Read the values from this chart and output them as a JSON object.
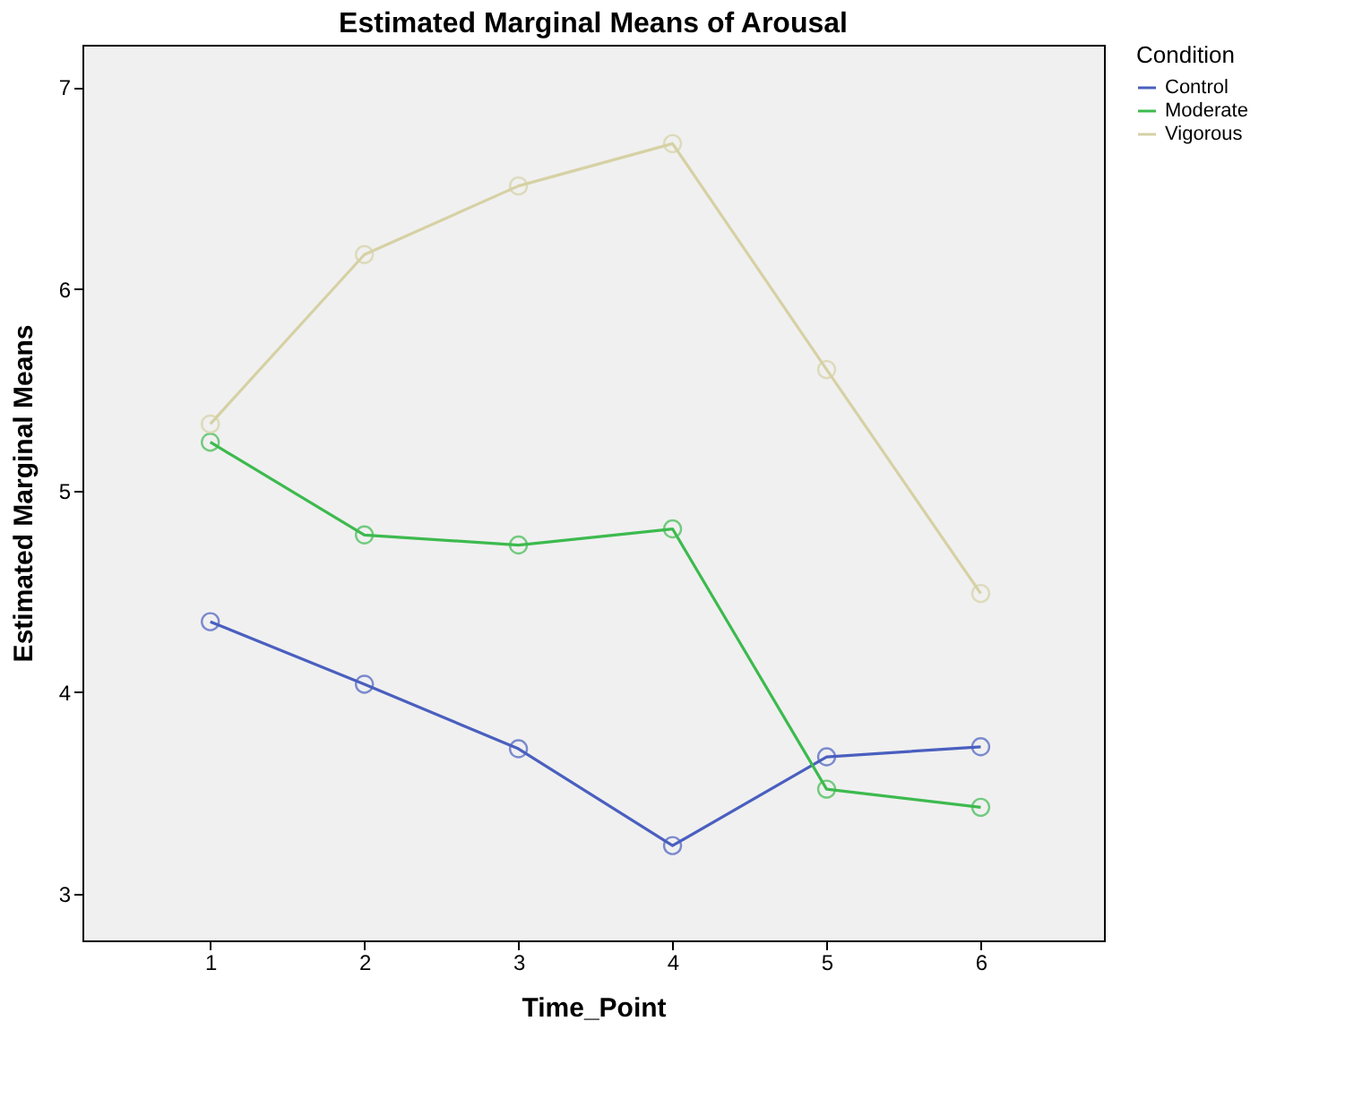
{
  "chart_data": {
    "type": "line",
    "title": "Estimated Marginal Means of Arousal",
    "xlabel": "Time_Point",
    "ylabel": "Estimated Marginal Means",
    "legend_title": "Condition",
    "x": [
      1,
      2,
      3,
      4,
      5,
      6
    ],
    "series": [
      {
        "name": "Control",
        "color": "#4a5fbf",
        "values": [
          4.35,
          4.04,
          3.72,
          3.24,
          3.68,
          3.73
        ]
      },
      {
        "name": "Moderate",
        "color": "#3dba4e",
        "values": [
          5.24,
          4.78,
          4.73,
          4.81,
          3.52,
          3.43
        ]
      },
      {
        "name": "Vigorous",
        "color": "#d6d1a4",
        "values": [
          5.33,
          6.17,
          6.51,
          6.72,
          5.6,
          4.49
        ]
      }
    ],
    "xlim": [
      0.17,
      6.8
    ],
    "ylim": [
      2.77,
      7.21
    ],
    "xticks": [
      1,
      2,
      3,
      4,
      5,
      6
    ],
    "yticks": [
      3,
      4,
      5,
      6,
      7
    ],
    "grid": false,
    "legend": "top right",
    "marker": "circle",
    "line_style": "solid"
  }
}
